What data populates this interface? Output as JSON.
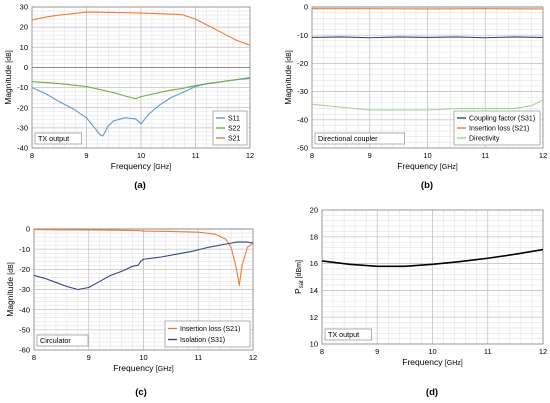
{
  "chart_data": [
    {
      "type": "line",
      "panel_label": "(a)",
      "xlabel": "Frequency",
      "xunit": "[GHz]",
      "ylabel": "Magnitude",
      "yunit": "[dB]",
      "xlim": [
        8,
        12
      ],
      "ylim": [
        -40,
        30
      ],
      "xticks": [
        8,
        9,
        10,
        11,
        12
      ],
      "yticks": [
        -40,
        -30,
        -20,
        -10,
        0,
        10,
        20,
        30
      ],
      "grid": true,
      "annotation": "TX output",
      "legend_position": "bottom-right",
      "series": [
        {
          "name": "S11",
          "color": "#5b9bd5",
          "x": [
            8,
            8.25,
            8.5,
            8.75,
            9,
            9.15,
            9.25,
            9.3,
            9.4,
            9.5,
            9.7,
            9.9,
            10,
            10.15,
            10.35,
            10.55,
            10.8,
            11,
            11.2,
            11.5,
            11.8,
            12
          ],
          "y": [
            -10,
            -13,
            -17,
            -20.5,
            -25,
            -30,
            -33.5,
            -34,
            -29,
            -26.5,
            -25,
            -25.5,
            -28,
            -23,
            -18.5,
            -15,
            -12,
            -9.5,
            -8,
            -7,
            -6,
            -5.5
          ]
        },
        {
          "name": "S22",
          "color": "#70ad47",
          "x": [
            8,
            8.5,
            9,
            9.5,
            9.75,
            9.9,
            10,
            10.25,
            10.5,
            10.75,
            11,
            11.5,
            12
          ],
          "y": [
            -7,
            -8,
            -9.5,
            -12.5,
            -14.5,
            -15.5,
            -14.5,
            -13,
            -11.5,
            -10.5,
            -9,
            -7,
            -5
          ]
        },
        {
          "name": "S21",
          "color": "#ed7d31",
          "x": [
            8,
            8.25,
            8.5,
            8.75,
            9,
            9.5,
            10,
            10.5,
            10.75,
            11,
            11.25,
            11.5,
            11.75,
            12
          ],
          "y": [
            23.5,
            25,
            26,
            26.7,
            27.5,
            27.3,
            27,
            26.5,
            26.2,
            24,
            20.5,
            17,
            13.5,
            11
          ]
        }
      ]
    },
    {
      "type": "line",
      "panel_label": "(b)",
      "xlabel": "Frequency",
      "xunit": "[GHz]",
      "ylabel": "Magnitude",
      "yunit": "[dB]",
      "xlim": [
        8,
        12
      ],
      "ylim": [
        -50,
        0
      ],
      "xticks": [
        8,
        9,
        10,
        11,
        12
      ],
      "yticks": [
        -50,
        -40,
        -30,
        -20,
        -10,
        0
      ],
      "grid": true,
      "annotation": "Directional coupler",
      "legend_position": "bottom-right",
      "series": [
        {
          "name": "Coupling factor (S31)",
          "color": "#2e4a7d",
          "x": [
            8,
            8.5,
            9,
            9.5,
            10,
            10.5,
            11,
            11.5,
            12
          ],
          "y": [
            -10.8,
            -10.6,
            -10.9,
            -10.6,
            -10.8,
            -10.6,
            -10.9,
            -10.6,
            -10.8
          ]
        },
        {
          "name": "Insertion loss (S21)",
          "color": "#ed7d31",
          "x": [
            8,
            9,
            10,
            11,
            12
          ],
          "y": [
            -0.6,
            -0.6,
            -0.7,
            -0.6,
            -0.7
          ]
        },
        {
          "name": "Directivity",
          "color": "#a9d18e",
          "x": [
            8,
            8.5,
            9,
            9.5,
            10,
            10.5,
            11,
            11.5,
            11.8,
            12
          ],
          "y": [
            -34.5,
            -35.5,
            -36.5,
            -36.5,
            -36.5,
            -36,
            -36,
            -36,
            -35,
            -33
          ]
        }
      ]
    },
    {
      "type": "line",
      "panel_label": "(c)",
      "xlabel": "Frequency",
      "xunit": "[GHz]",
      "ylabel": "Magnitude",
      "yunit": "[dB]",
      "xlim": [
        8,
        12
      ],
      "ylim": [
        -60,
        0
      ],
      "xticks": [
        8,
        9,
        10,
        11,
        12
      ],
      "yticks": [
        -60,
        -50,
        -40,
        -30,
        -20,
        -10,
        0
      ],
      "grid": true,
      "annotation": "Circulator",
      "legend_position": "bottom-right",
      "series": [
        {
          "name": "Insertion loss (S21)",
          "color": "#ed7d31",
          "x": [
            8,
            8.5,
            9,
            9.5,
            9.9,
            10,
            10.5,
            11,
            11.3,
            11.5,
            11.6,
            11.7,
            11.75,
            11.8,
            11.9,
            12
          ],
          "y": [
            -0.3,
            -0.4,
            -0.5,
            -0.6,
            -0.8,
            -1,
            -1.2,
            -1.6,
            -2.5,
            -5,
            -9,
            -20,
            -28,
            -18,
            -9,
            -7
          ]
        },
        {
          "name": "Isolation (S31)",
          "color": "#2e4a7d",
          "x": [
            8,
            8.2,
            8.4,
            8.6,
            8.8,
            9,
            9.2,
            9.4,
            9.6,
            9.8,
            9.9,
            9.95,
            10,
            10.3,
            10.6,
            10.9,
            11.2,
            11.5,
            11.7,
            11.9,
            12
          ],
          "y": [
            -23,
            -24.5,
            -26.5,
            -28.5,
            -30,
            -29,
            -26,
            -23,
            -21,
            -18.5,
            -18,
            -16,
            -15,
            -14,
            -12.5,
            -11,
            -9,
            -7.5,
            -6.5,
            -6.5,
            -7
          ]
        }
      ]
    },
    {
      "type": "line",
      "panel_label": "(d)",
      "xlabel": "Frequency",
      "xunit": "[GHz]",
      "ylabel_main": "P",
      "ylabel_sub": "sat",
      "yunit": "[dBm]",
      "xlim": [
        8,
        12
      ],
      "ylim": [
        10,
        20
      ],
      "xticks": [
        8,
        9,
        10,
        11,
        12
      ],
      "yticks": [
        10,
        12,
        14,
        16,
        18,
        20
      ],
      "grid": true,
      "annotation": "TX output",
      "series": [
        {
          "name": "",
          "color": "#000000",
          "x": [
            8,
            8.5,
            9,
            9.5,
            10,
            10.5,
            11,
            11.5,
            12
          ],
          "y": [
            16.2,
            15.95,
            15.8,
            15.8,
            15.95,
            16.15,
            16.4,
            16.7,
            17.05
          ]
        }
      ]
    }
  ]
}
